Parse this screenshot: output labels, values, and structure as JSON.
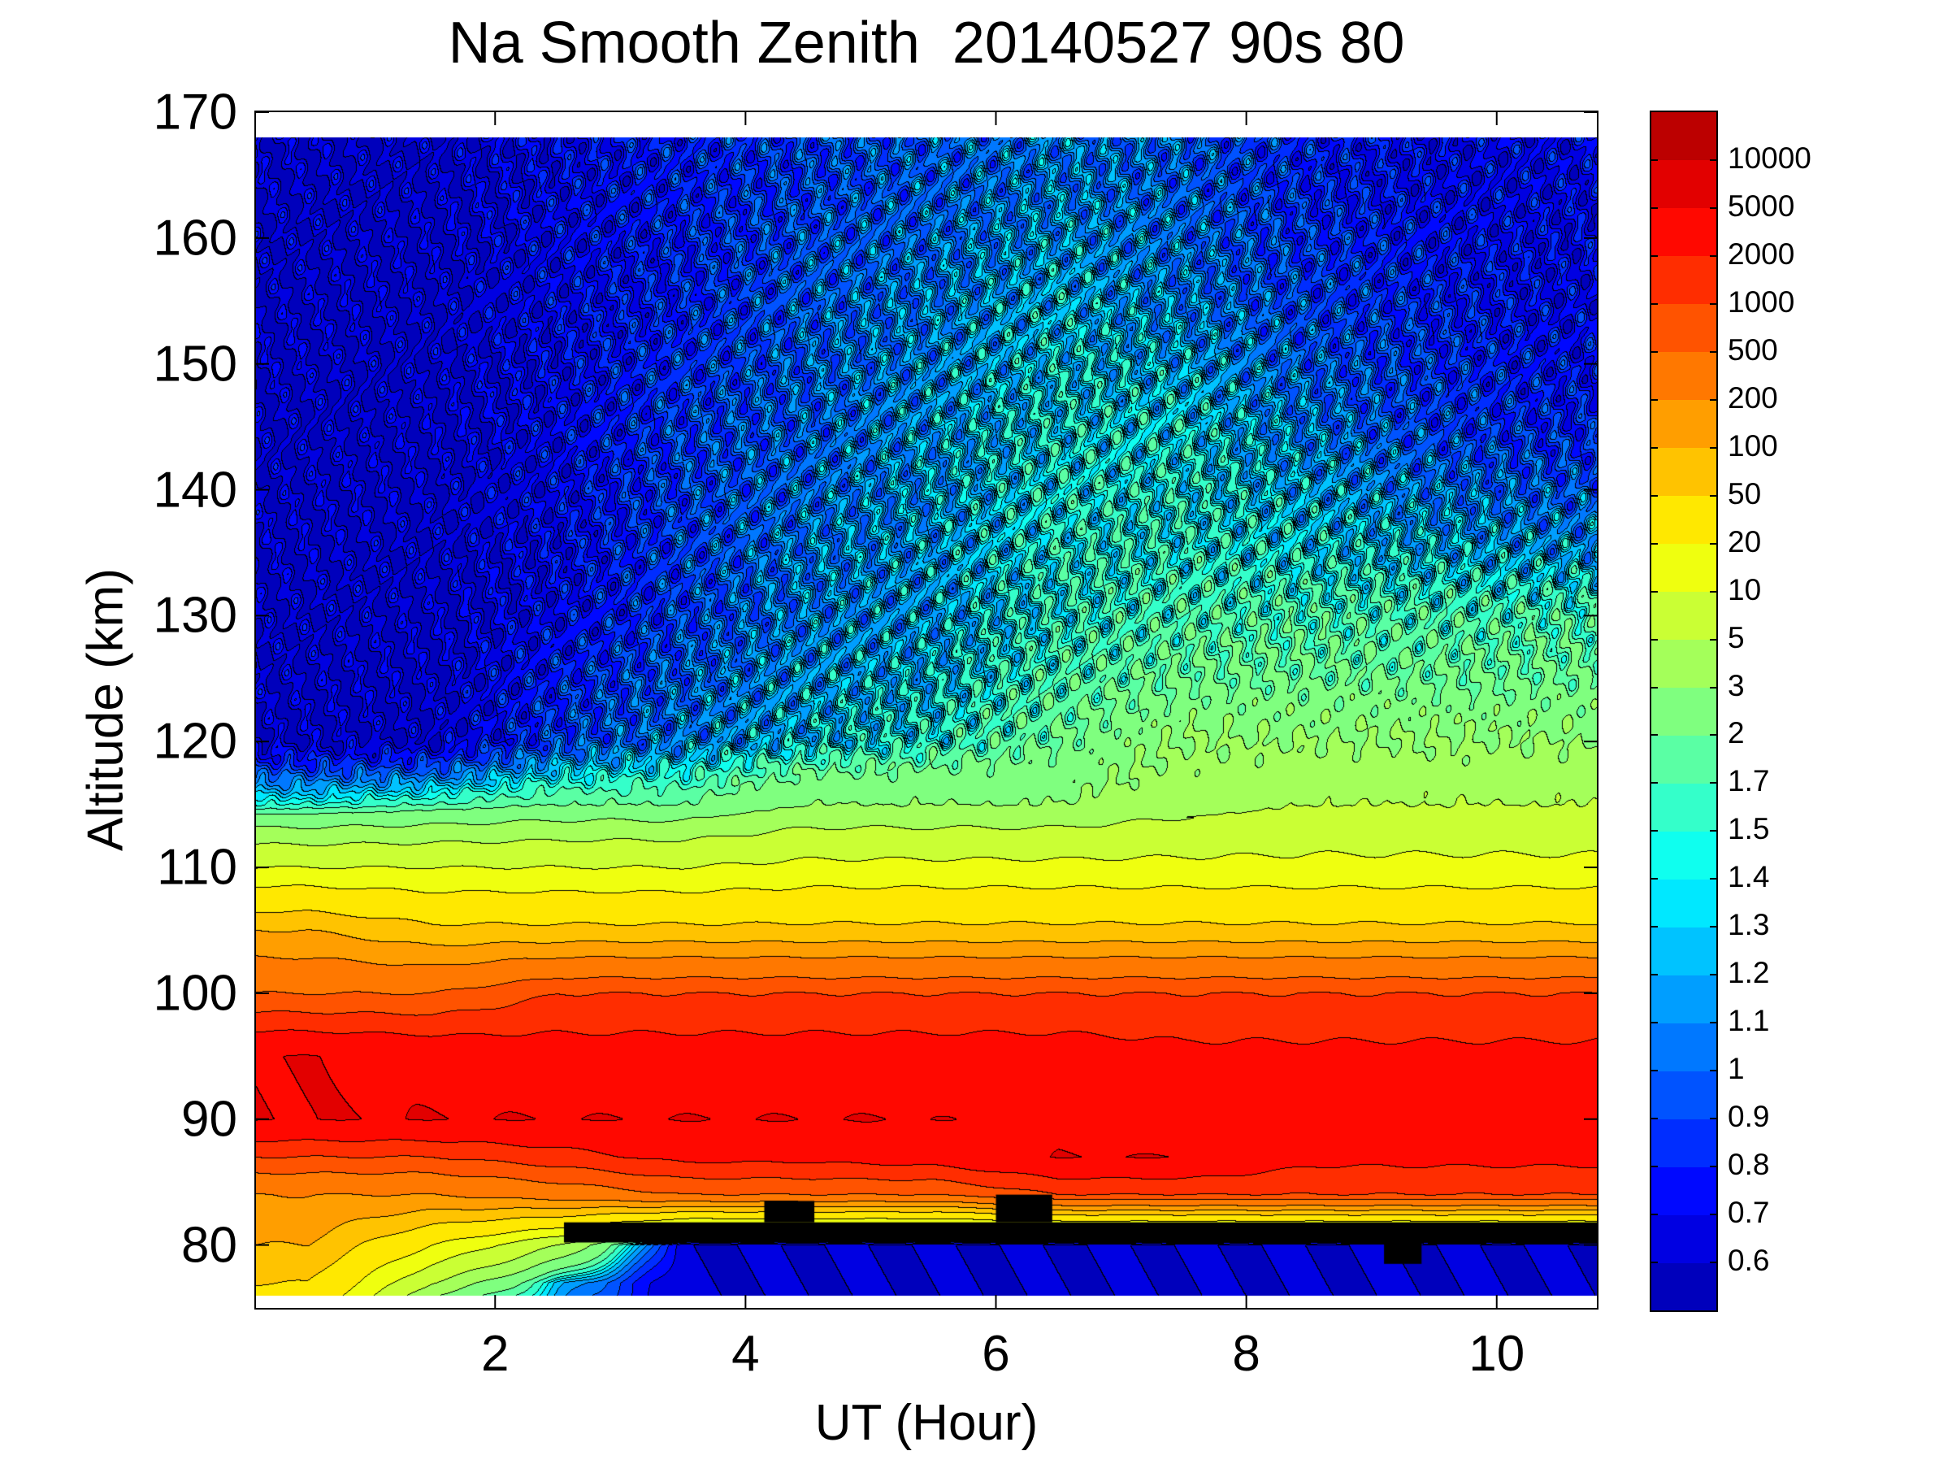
{
  "chart_data": {
    "type": "heatmap",
    "subtype": "filled-contour",
    "title": "Na Smooth Zenith  20140527 90s 80",
    "xlabel": "UT (Hour)",
    "ylabel": "Altitude (km)",
    "xlim": [
      0.09,
      10.8
    ],
    "ylim": [
      75,
      170
    ],
    "xticks": [
      "2",
      "4",
      "6",
      "8",
      "10"
    ],
    "yticks": [
      "80",
      "90",
      "100",
      "110",
      "120",
      "130",
      "140",
      "150",
      "160",
      "170"
    ],
    "colormap": "jet",
    "colorbar_levels": [
      0.6,
      0.7,
      0.8,
      0.9,
      1,
      1.1,
      1.2,
      1.3,
      1.4,
      1.5,
      1.7,
      2,
      3,
      5,
      10,
      20,
      50,
      100,
      200,
      500,
      1000,
      2000,
      5000,
      10000
    ],
    "colorbar_labels": [
      "0.6",
      "0.7",
      "0.8",
      "0.9",
      "1",
      "1.1",
      "1.2",
      "1.3",
      "1.4",
      "1.5",
      "1.7",
      "2",
      "3",
      "5",
      "10",
      "20",
      "50",
      "100",
      "200",
      "500",
      "1000",
      "2000",
      "5000",
      "10000"
    ],
    "grid": false,
    "x": [
      0.5,
      1.5,
      2.5,
      3.5,
      4.5,
      5.5,
      6.5,
      7.5,
      8.5,
      9.5,
      10.5
    ],
    "y": [
      168,
      165,
      155,
      145,
      135,
      130,
      125,
      120,
      115,
      110,
      105,
      100,
      95,
      90,
      87,
      84,
      80,
      77,
      76
    ],
    "z": [
      [
        0.6,
        0.6,
        0.7,
        0.8,
        0.9,
        1.0,
        1.1,
        1.0,
        0.8,
        0.7,
        0.7
      ],
      [
        0.6,
        0.6,
        0.7,
        0.8,
        0.9,
        1.0,
        1.1,
        1.0,
        0.8,
        0.7,
        0.7
      ],
      [
        0.6,
        0.6,
        0.7,
        0.8,
        1.0,
        1.1,
        1.3,
        1.1,
        0.9,
        0.8,
        0.7
      ],
      [
        0.6,
        0.6,
        0.7,
        0.9,
        1.0,
        1.2,
        1.4,
        1.4,
        1.1,
        0.9,
        0.8
      ],
      [
        0.6,
        0.6,
        0.7,
        0.9,
        1.1,
        1.2,
        1.5,
        1.5,
        1.4,
        1.3,
        1.2
      ],
      [
        0.6,
        0.6,
        0.7,
        0.9,
        1.1,
        1.2,
        1.5,
        1.7,
        1.7,
        1.7,
        1.7
      ],
      [
        0.6,
        0.6,
        0.8,
        1.0,
        1.2,
        1.3,
        1.7,
        2,
        2,
        2,
        2
      ],
      [
        0.6,
        0.6,
        0.9,
        1.1,
        1.3,
        1.5,
        2,
        3,
        3,
        3,
        3
      ],
      [
        1.5,
        1.7,
        2,
        2,
        3,
        3,
        3,
        4,
        5,
        5,
        5
      ],
      [
        10,
        10,
        10,
        10,
        12,
        12,
        12,
        12,
        12,
        12,
        12
      ],
      [
        100,
        60,
        60,
        60,
        60,
        60,
        60,
        60,
        60,
        60,
        60
      ],
      [
        500,
        500,
        1000,
        1000,
        1000,
        1000,
        1000,
        1000,
        1000,
        1000,
        1000
      ],
      [
        5000,
        4000,
        3000,
        3000,
        3000,
        3000,
        3000,
        2500,
        2500,
        2500,
        2500
      ],
      [
        5000,
        5000,
        5000,
        5000,
        5000,
        5000,
        4000,
        2500,
        2500,
        2500,
        2500
      ],
      [
        1000,
        1000,
        1500,
        2500,
        2500,
        3000,
        5000,
        5000,
        2500,
        2500,
        2500
      ],
      [
        200,
        200,
        300,
        500,
        500,
        500,
        1000,
        1000,
        1000,
        1000,
        1000
      ],
      [
        100,
        20,
        5,
        0.6,
        0.6,
        0.6,
        0.6,
        0.6,
        0.6,
        0.6,
        0.6
      ],
      [
        50,
        5,
        1.3,
        0.6,
        0.6,
        0.6,
        0.6,
        0.6,
        0.6,
        0.6,
        0.6
      ],
      [
        40,
        3,
        1.2,
        0.6,
        0.6,
        0.6,
        0.6,
        0.6,
        0.6,
        0.6,
        0.6
      ]
    ]
  }
}
